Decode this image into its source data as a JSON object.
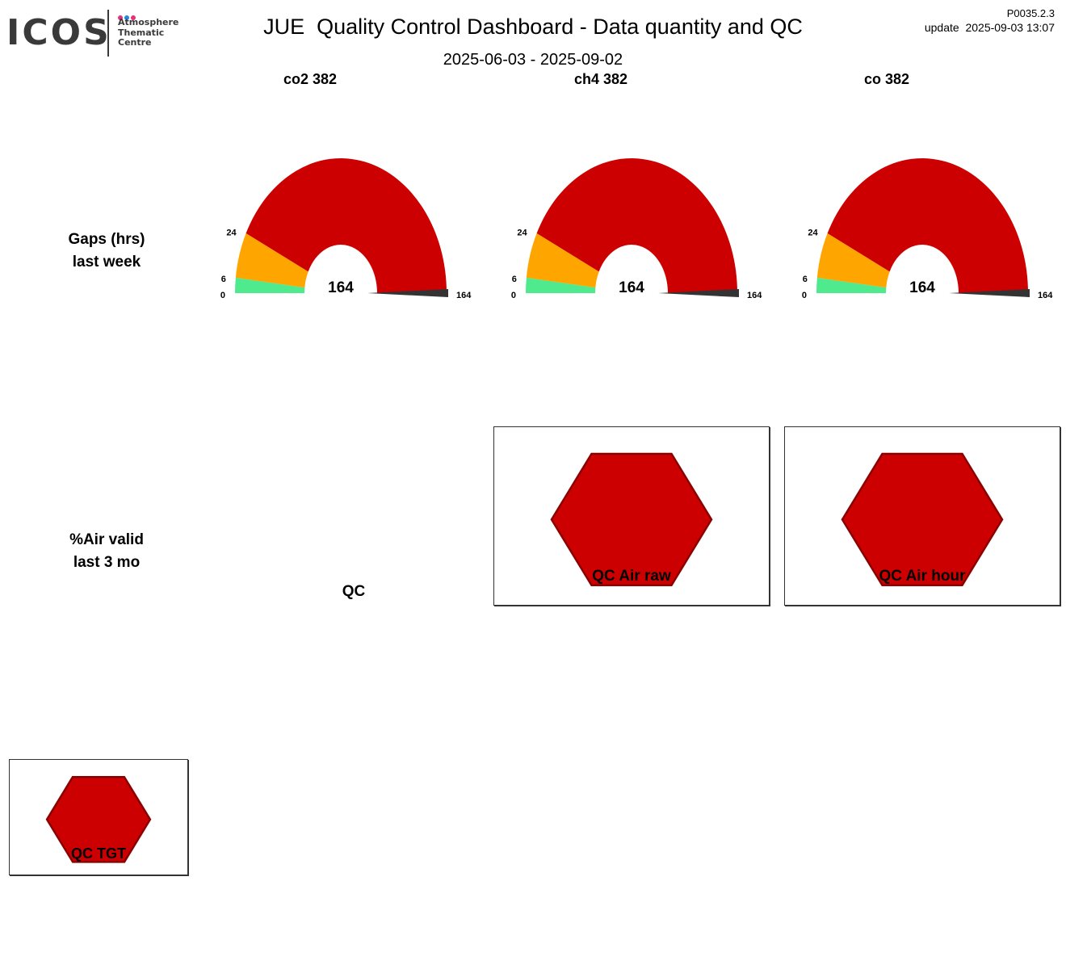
{
  "logo": {
    "wordmark": "ICOS",
    "lines": [
      "Atmosphere",
      "Thematic",
      "Centre"
    ],
    "dot_colors": [
      "#e6307a",
      "#2a86d6",
      "#e6307a"
    ]
  },
  "header": {
    "title": "JUE  Quality Control Dashboard - Data quantity and QC",
    "date_range": "2025-06-03 - 2025-09-02",
    "version": "P0035.2.3",
    "update": "update  2025-09-03 13:07"
  },
  "row_labels": {
    "gaps": [
      "Gaps (hrs)",
      "last week"
    ],
    "air_valid": [
      "%Air valid",
      "last 3 mo"
    ]
  },
  "qc_label": "QC",
  "colors": {
    "green": "#4fea8e",
    "orange": "#ffa500",
    "red": "#cc0000",
    "needle": "#333333",
    "hex_fill": "#cc0000",
    "hex_stroke": "#8b0000"
  },
  "chart_data": [
    {
      "type": "gauge",
      "title": "co2 382",
      "value": 164,
      "range": [
        0,
        164
      ],
      "bands": [
        {
          "from": 0,
          "to": 6,
          "color": "green"
        },
        {
          "from": 6,
          "to": 24,
          "color": "orange"
        },
        {
          "from": 24,
          "to": 164,
          "color": "red"
        }
      ],
      "ticks": [
        "0",
        "6",
        "24",
        "164"
      ],
      "value_label": "164"
    },
    {
      "type": "gauge",
      "title": "ch4 382",
      "value": 164,
      "range": [
        0,
        164
      ],
      "bands": [
        {
          "from": 0,
          "to": 6,
          "color": "green"
        },
        {
          "from": 6,
          "to": 24,
          "color": "orange"
        },
        {
          "from": 24,
          "to": 164,
          "color": "red"
        }
      ],
      "ticks": [
        "0",
        "6",
        "24",
        "164"
      ],
      "value_label": "164"
    },
    {
      "type": "gauge",
      "title": "co 382",
      "value": 164,
      "range": [
        0,
        164
      ],
      "bands": [
        {
          "from": 0,
          "to": 6,
          "color": "green"
        },
        {
          "from": 6,
          "to": 24,
          "color": "orange"
        },
        {
          "from": 24,
          "to": 164,
          "color": "red"
        }
      ],
      "ticks": [
        "0",
        "6",
        "24",
        "164"
      ],
      "value_label": "164"
    }
  ],
  "qc_indicators": [
    {
      "label": "QC Air raw",
      "status": "red"
    },
    {
      "label": "QC Air hour",
      "status": "red"
    },
    {
      "label": "QC TGT",
      "status": "red"
    }
  ]
}
